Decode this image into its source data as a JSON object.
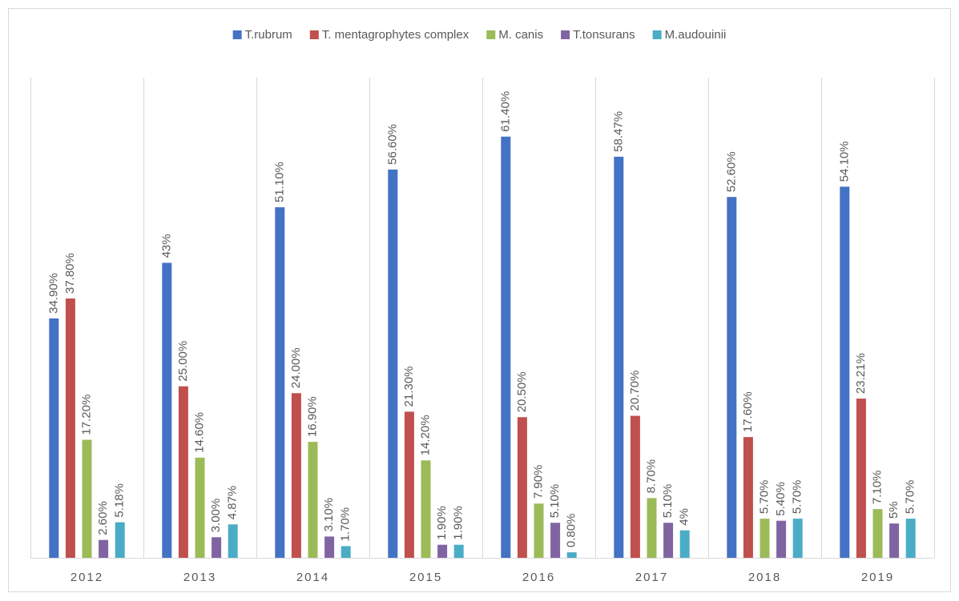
{
  "chart_data": {
    "type": "bar",
    "categories": [
      "2012",
      "2013",
      "2014",
      "2015",
      "2016",
      "2017",
      "2018",
      "2019"
    ],
    "ylim": [
      0,
      70
    ],
    "legend": "top",
    "series": [
      {
        "name": "T.rubrum",
        "color": "#4472c4",
        "values": [
          34.9,
          43,
          51.1,
          56.6,
          61.4,
          58.47,
          52.6,
          54.1
        ],
        "value_labels": [
          "34.90%",
          "43%",
          "51.10%",
          "56.60%",
          "61.40%",
          "58.47%",
          "52.60%",
          "54.10%"
        ]
      },
      {
        "name": "T. mentagrophytes complex",
        "color": "#c0504d",
        "values": [
          37.8,
          25,
          24,
          21.3,
          20.5,
          20.7,
          17.6,
          23.21
        ],
        "value_labels": [
          "37.80%",
          "25.00%",
          "24.00%",
          "21.30%",
          "20.50%",
          "20.70%",
          "17.60%",
          "23.21%"
        ]
      },
      {
        "name": "M. canis",
        "color": "#9bbb59",
        "values": [
          17.2,
          14.6,
          16.9,
          14.2,
          7.9,
          8.7,
          5.7,
          7.1
        ],
        "value_labels": [
          "17.20%",
          "14.60%",
          "16.90%",
          "14.20%",
          "7.90%",
          "8.70%",
          "5.70%",
          "7.10%"
        ]
      },
      {
        "name": "T.tonsurans",
        "color": "#8064a2",
        "values": [
          2.6,
          3,
          3.1,
          1.9,
          5.1,
          5.1,
          5.4,
          5
        ],
        "value_labels": [
          "2.60%",
          "3.00%",
          "3.10%",
          "1.90%",
          "5.10%",
          "5.10%",
          "5.40%",
          "5%"
        ]
      },
      {
        "name": "M.audouinii",
        "color": "#4bacc6",
        "values": [
          5.18,
          4.87,
          1.7,
          1.9,
          0.8,
          4,
          5.7,
          5.7
        ],
        "value_labels": [
          "5.18%",
          "4.87%",
          "1.70%",
          "1.90%",
          "0.80%",
          "4%",
          "5.70%",
          "5.70%"
        ]
      }
    ]
  }
}
